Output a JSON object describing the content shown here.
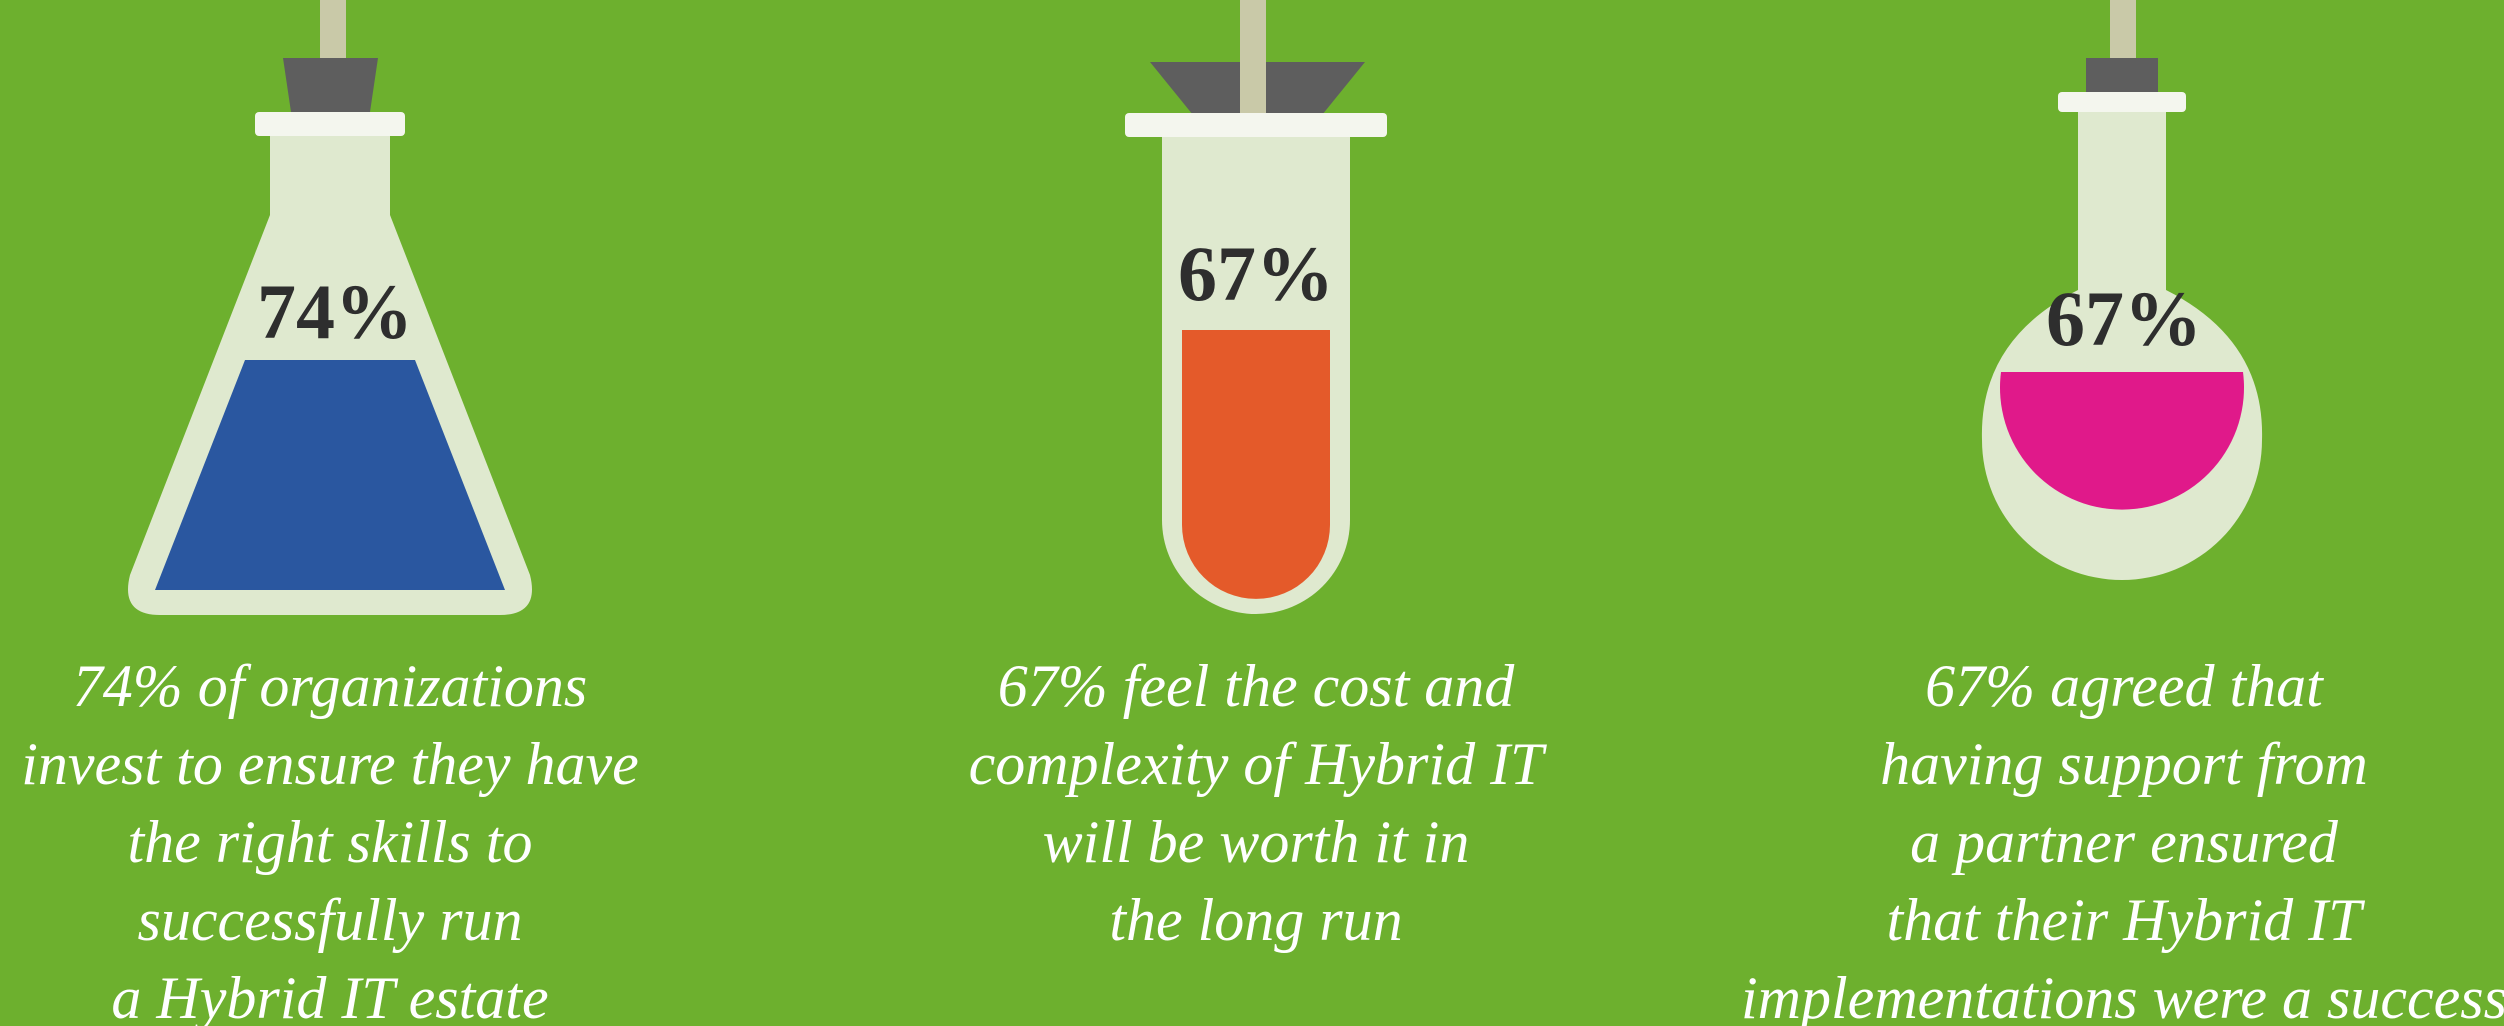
{
  "items": [
    {
      "percent": "74%",
      "caption": [
        "74% of organizations",
        "invest to ensure they have",
        "the right skills to",
        "successfully run",
        "a Hybrid IT estate"
      ]
    },
    {
      "percent": "67%",
      "caption": [
        "67% feel the cost and",
        "complexity of Hybrid IT",
        "will be worth it in",
        "the long run"
      ]
    },
    {
      "percent": "67%",
      "caption": [
        "67% agreed that",
        "having support from",
        "a partner ensured",
        "that their Hybrid IT",
        "implementations were a success"
      ]
    }
  ]
}
